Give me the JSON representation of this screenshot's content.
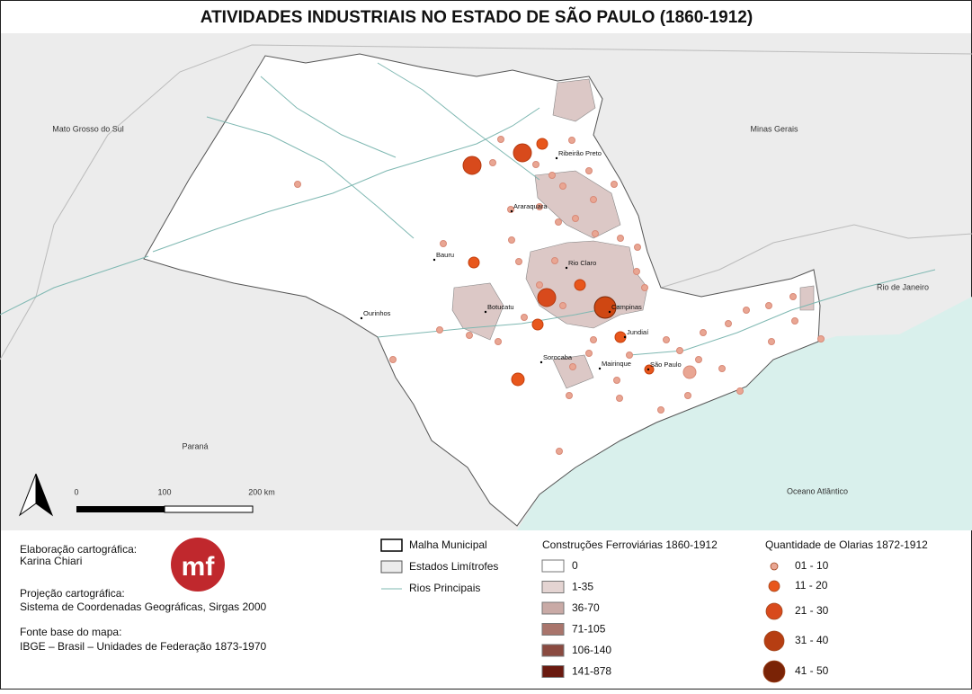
{
  "title": "ATIVIDADES INDUSTRIAIS NO ESTADO DE SÃO PAULO (1860-1912)",
  "map_labels": {
    "states": [
      "Mato Grosso do Sul",
      "Minas Gerais",
      "Rio de Janeiro",
      "Paraná",
      "Oceano Atlântico"
    ],
    "cities": [
      "Ribeirão Preto",
      "Araraquara",
      "Bauru",
      "Rio Claro",
      "Botucatu",
      "Campinas",
      "Ourinhos",
      "Jundiaí",
      "Sorocaba",
      "Mairinque",
      "São Paulo"
    ]
  },
  "scale_bar": [
    "0",
    "100",
    "200 km"
  ],
  "credits": {
    "logo": "mf",
    "lines": [
      "Elaboração cartográfica:",
      "Karina Chiari",
      "Projeção cartográfica:",
      "Sistema de Coordenadas Geográficas, Sirgas 2000",
      "Fonte base do mapa:",
      "IBGE – Brasil – Unidades de Federação 1873-1970"
    ]
  },
  "legend_map": [
    "Malha Municipal",
    "Estados Limítrofes",
    "Rios Principais"
  ],
  "legend_rail": {
    "title": "Construções Ferroviárias 1860-1912",
    "classes": [
      "0",
      "1-35",
      "36-70",
      "71-105",
      "106-140",
      "141-878"
    ]
  },
  "legend_olarias": {
    "title": "Quantidade de Olarias 1872-1912",
    "classes": [
      "01 - 10",
      "11 - 20",
      "21 - 30",
      "31 - 40",
      "41 - 50"
    ]
  }
}
